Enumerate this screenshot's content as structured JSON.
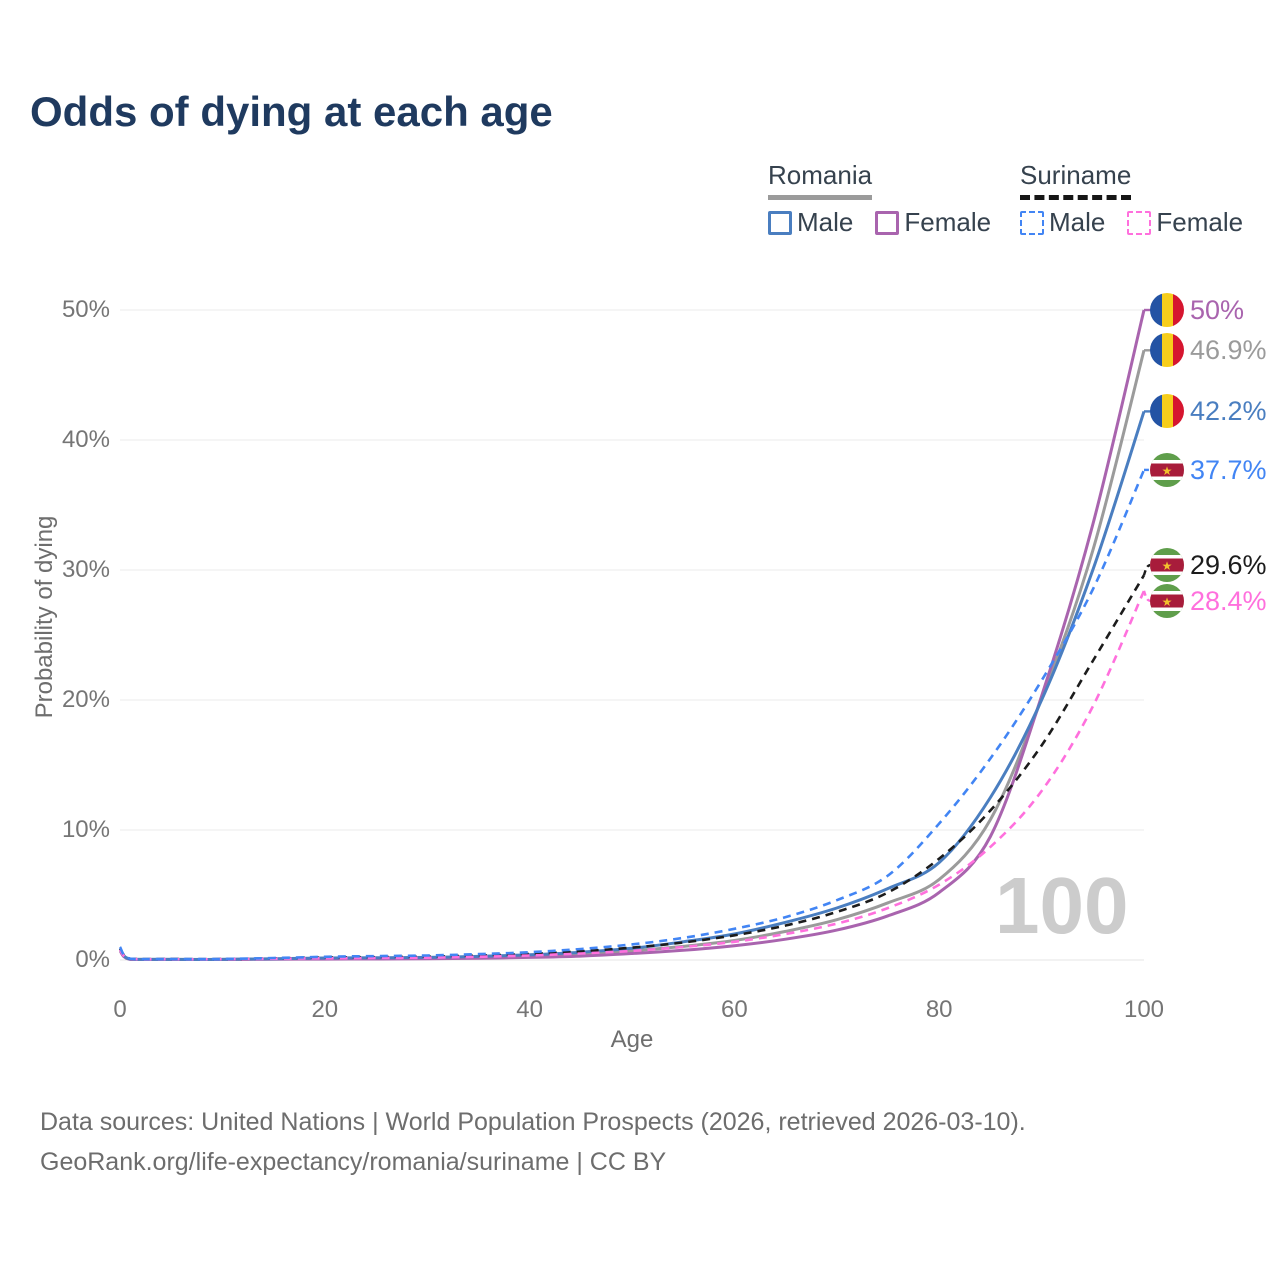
{
  "title": "Odds of dying at each age",
  "watermark": "100",
  "legend": {
    "groups": [
      {
        "label": "Romania",
        "line_style": "solid",
        "underline_color": "#9b9b9b",
        "items": [
          {
            "label": "Male",
            "color": "#4a7ec0",
            "dashed": false
          },
          {
            "label": "Female",
            "color": "#a964ae",
            "dashed": false
          }
        ]
      },
      {
        "label": "Suriname",
        "line_style": "dashed",
        "underline_color": "#161616",
        "items": [
          {
            "label": "Male",
            "color": "#4285f4",
            "dashed": true
          },
          {
            "label": "Female",
            "color": "#ff70dd",
            "dashed": true
          }
        ]
      }
    ]
  },
  "chart_data": {
    "type": "line",
    "title": "Odds of dying at each age",
    "xlabel": "Age",
    "ylabel": "Probability of dying",
    "xlim": [
      0,
      100
    ],
    "ylim": [
      0,
      50
    ],
    "grid": true,
    "x_ticks": [
      "0",
      "20",
      "40",
      "60",
      "80",
      "100"
    ],
    "y_ticks": [
      "0%",
      "10%",
      "20%",
      "30%",
      "40%",
      "50%"
    ],
    "legend_position": "top-right",
    "x": [
      0,
      1,
      5,
      10,
      15,
      20,
      25,
      30,
      35,
      40,
      45,
      50,
      55,
      60,
      65,
      70,
      75,
      80,
      85,
      90,
      95,
      100
    ],
    "series": [
      {
        "name": "Romania Male",
        "color": "#4a7ec0",
        "dashed": false,
        "end_label": "42.2%",
        "label_color": "#4a7ec0",
        "flag": "romania",
        "values": [
          0.9,
          0.06,
          0.05,
          0.05,
          0.1,
          0.15,
          0.17,
          0.2,
          0.28,
          0.4,
          0.6,
          0.9,
          1.4,
          2.0,
          2.9,
          4.0,
          5.5,
          7.5,
          12.5,
          20.0,
          30.0,
          42.2
        ]
      },
      {
        "name": "Romania Female",
        "color": "#a964ae",
        "dashed": false,
        "end_label": "50%",
        "label_color": "#a964ae",
        "flag": "romania",
        "values": [
          0.7,
          0.05,
          0.04,
          0.04,
          0.06,
          0.07,
          0.08,
          0.1,
          0.14,
          0.2,
          0.3,
          0.5,
          0.75,
          1.1,
          1.6,
          2.3,
          3.4,
          5.2,
          9.5,
          20.3,
          33.5,
          50.0
        ]
      },
      {
        "name": "Romania (both sexes)",
        "color": "#9b9b9b",
        "dashed": false,
        "end_label": "46.9%",
        "label_color": "#9b9b9b",
        "flag": "romania",
        "values": [
          0.8,
          0.055,
          0.045,
          0.045,
          0.08,
          0.11,
          0.13,
          0.15,
          0.21,
          0.3,
          0.45,
          0.7,
          1.05,
          1.5,
          2.2,
          3.1,
          4.4,
          6.2,
          10.8,
          20.1,
          31.5,
          46.9
        ]
      },
      {
        "name": "Suriname Male",
        "color": "#4285f4",
        "dashed": true,
        "end_label": "37.7%",
        "label_color": "#4285f4",
        "flag": "suriname",
        "values": [
          1.0,
          0.1,
          0.08,
          0.08,
          0.15,
          0.25,
          0.3,
          0.35,
          0.45,
          0.6,
          0.85,
          1.2,
          1.7,
          2.4,
          3.3,
          4.6,
          6.5,
          10.5,
          15.5,
          21.5,
          28.5,
          37.7
        ]
      },
      {
        "name": "Suriname Female",
        "color": "#ff70dd",
        "dashed": true,
        "end_label": "28.4%",
        "label_color": "#ff70dd",
        "flag": "suriname",
        "values": [
          0.8,
          0.08,
          0.06,
          0.06,
          0.1,
          0.13,
          0.15,
          0.18,
          0.25,
          0.35,
          0.5,
          0.7,
          1.0,
          1.4,
          2.0,
          2.8,
          4.0,
          5.8,
          8.7,
          13.0,
          19.5,
          28.4
        ]
      },
      {
        "name": "Suriname (both sexes)",
        "color": "#1c1c1c",
        "dashed": true,
        "end_label": "29.6%",
        "label_color": "#1c1c1c",
        "flag": "suriname",
        "values": [
          0.9,
          0.09,
          0.07,
          0.07,
          0.12,
          0.19,
          0.22,
          0.26,
          0.35,
          0.47,
          0.67,
          0.95,
          1.35,
          1.9,
          2.65,
          3.7,
          5.2,
          7.8,
          11.5,
          16.5,
          23.0,
          29.6
        ]
      }
    ]
  },
  "footer": {
    "line1": "Data sources: United Nations | World Population Prospects (2026, retrieved 2026-03-10).",
    "line2": "GeoRank.org/life-expectancy/romania/suriname | CC BY"
  }
}
